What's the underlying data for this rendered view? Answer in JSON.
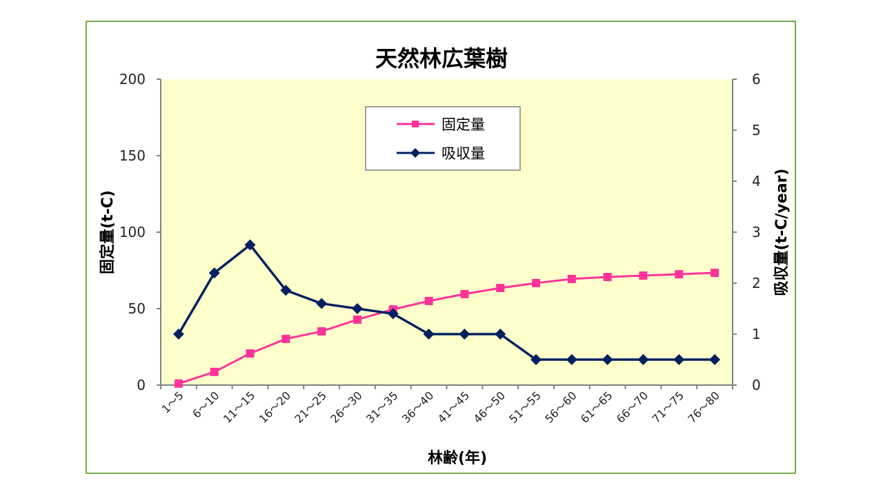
{
  "chart_data": {
    "type": "line",
    "title": "天然林広葉樹",
    "xlabel": "林齢(年)",
    "ylabel": "固定量(t-C)",
    "y2label": "吸収量(t-C/year)",
    "ylim": [
      0,
      200
    ],
    "y2lim": [
      0,
      6
    ],
    "yticks": [
      "0",
      "50",
      "100",
      "150",
      "200"
    ],
    "y2ticks": [
      "0",
      "1",
      "2",
      "3",
      "4",
      "5",
      "6"
    ],
    "legend_position": "top-center",
    "categories": [
      "1～5",
      "6～10",
      "11～15",
      "16～20",
      "21～25",
      "26～30",
      "31～35",
      "36～40",
      "41～45",
      "46～50",
      "51～55",
      "56～60",
      "61～65",
      "66～70",
      "71～75",
      "76～80"
    ],
    "series": [
      {
        "name": "固定量",
        "axis": "left",
        "color": "#ff3399",
        "marker": "square",
        "values": [
          1,
          8.6,
          20.7,
          30.2,
          35.1,
          42.8,
          49.5,
          55,
          59.5,
          63.5,
          66.7,
          69.4,
          70.7,
          71.6,
          72.5,
          73.4
        ]
      },
      {
        "name": "吸収量",
        "axis": "right",
        "color": "#002060",
        "marker": "diamond",
        "values": [
          1.0,
          2.2,
          2.75,
          1.86,
          1.6,
          1.5,
          1.4,
          1.0,
          1.0,
          1.0,
          0.5,
          0.5,
          0.5,
          0.5,
          0.5,
          0.5
        ]
      }
    ],
    "colors": {
      "plot_bg": "#ffffcc",
      "frame": "#70ad47",
      "axis": "#808080"
    }
  }
}
